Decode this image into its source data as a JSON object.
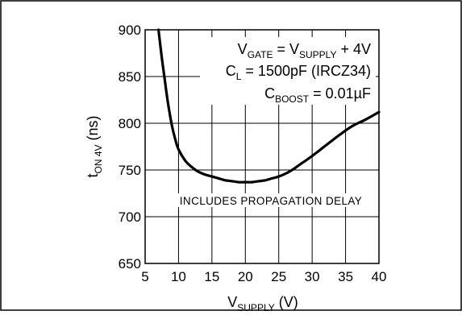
{
  "chart_data": {
    "type": "line",
    "xlabel": {
      "main": "V",
      "sub": "SUPPLY",
      "unit": " (V)"
    },
    "ylabel": {
      "main": "t",
      "sub": "ON 4V",
      "unit": " (ns)"
    },
    "xlim": [
      5,
      40
    ],
    "ylim": [
      650,
      900
    ],
    "x_ticks": [
      5,
      10,
      15,
      20,
      25,
      30,
      35,
      40
    ],
    "y_ticks": [
      650,
      700,
      750,
      800,
      850,
      900
    ],
    "grid": true,
    "series": [
      {
        "x": [
          7.0,
          7.5,
          8.0,
          8.5,
          9.0,
          9.5,
          10.0,
          11.0,
          12.0,
          13.0,
          14.0,
          15.0,
          16.0,
          17.0,
          18.0,
          19.0,
          20.0,
          21.0,
          22.0,
          23.0,
          24.0,
          25.0,
          26.0,
          27.0,
          28.0,
          30.0,
          32.0,
          34.0,
          36.0,
          38.0,
          40.0
        ],
        "y": [
          900,
          870,
          843,
          818,
          798,
          783,
          772,
          760,
          753,
          748,
          745,
          743,
          741,
          739,
          738,
          737,
          737,
          737,
          738,
          739,
          741,
          743,
          746,
          750,
          755,
          765,
          776,
          787,
          797,
          804,
          812
        ]
      }
    ],
    "annotations": {
      "line1": {
        "a": "V",
        "a_sub": "GATE",
        "b": " = V",
        "b_sub": "SUPPLY",
        "c": " + 4V"
      },
      "line2": {
        "a": "C",
        "a_sub": "L",
        "b": " = 1500pF (IRCZ34)"
      },
      "line3": {
        "a": "C",
        "a_sub": "BOOST",
        "b": " = 0.01µF"
      },
      "note": "INCLUDES PROPAGATION DELAY"
    }
  }
}
